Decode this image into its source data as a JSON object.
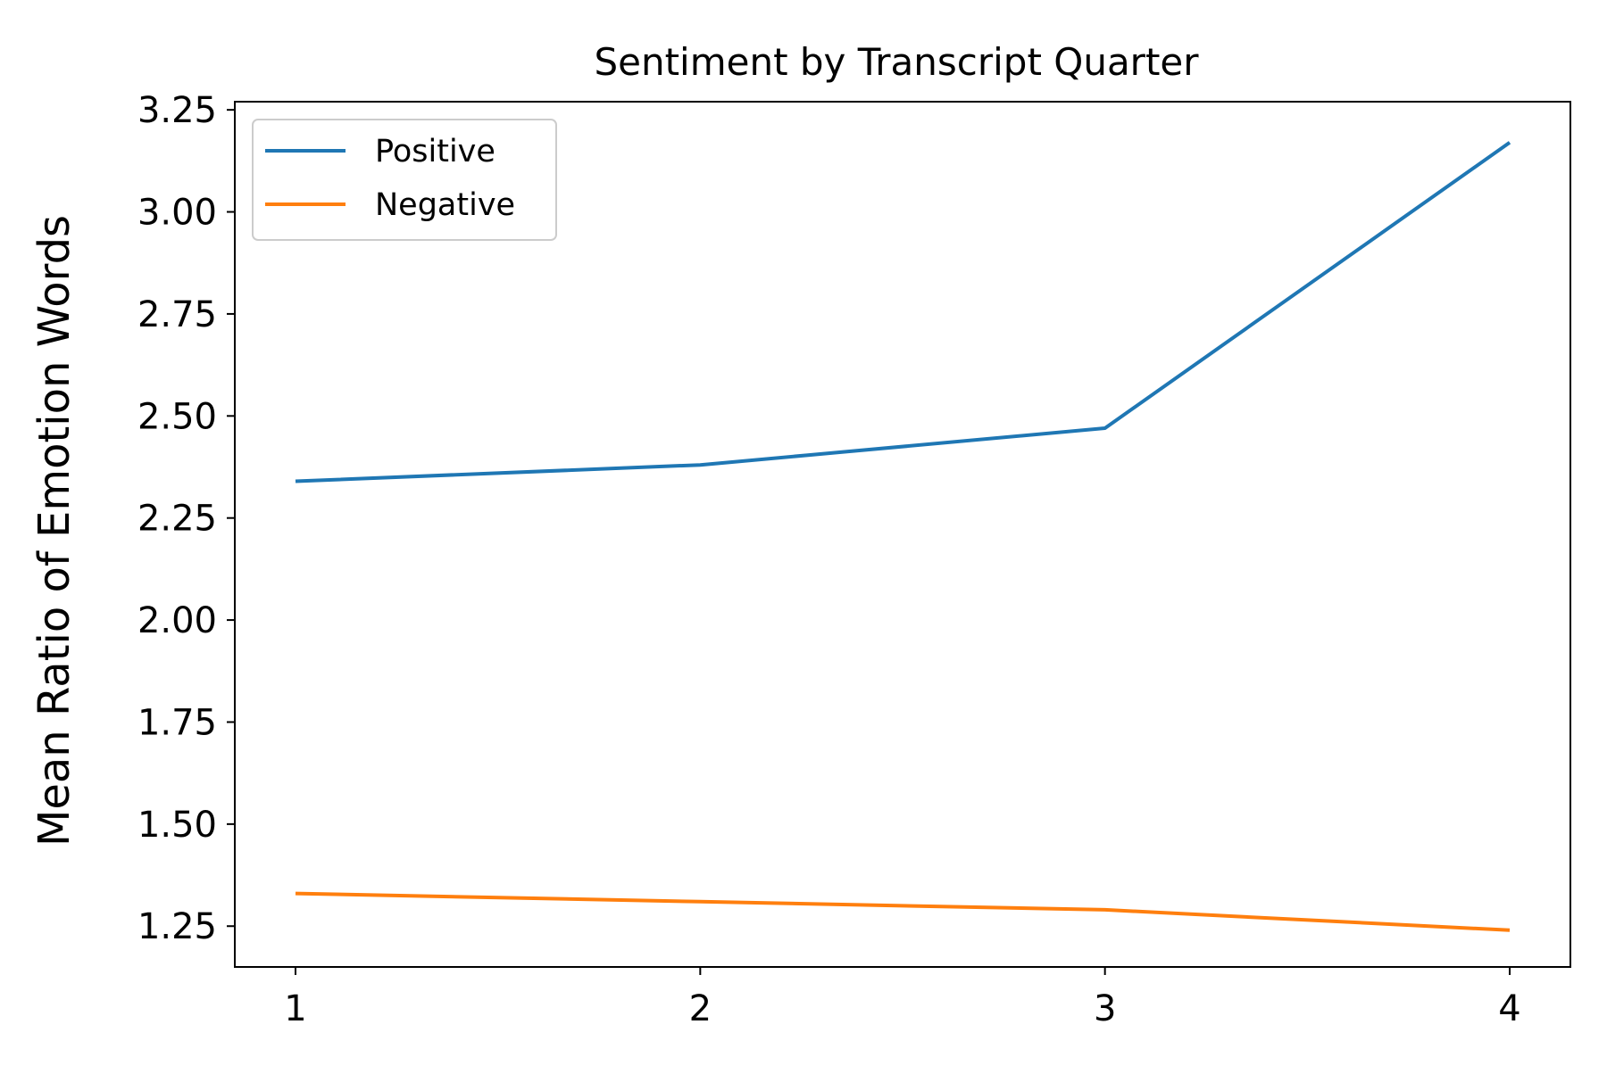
{
  "chart_data": {
    "type": "line",
    "title": "Sentiment by Transcript Quarter",
    "xlabel": "",
    "ylabel": "Mean Ratio of Emotion Words",
    "x": [
      1,
      2,
      3,
      4
    ],
    "xticks": [
      "1",
      "2",
      "3",
      "4"
    ],
    "xlim": [
      0.85,
      4.15
    ],
    "ylim": [
      1.15,
      3.27
    ],
    "yticks": [
      1.25,
      1.5,
      1.75,
      2.0,
      2.25,
      2.5,
      2.75,
      3.0,
      3.25
    ],
    "ytick_labels": [
      "1.25",
      "1.50",
      "1.75",
      "2.00",
      "2.25",
      "2.50",
      "2.75",
      "3.00",
      "3.25"
    ],
    "grid": false,
    "legend_position": "top-left",
    "series": [
      {
        "name": "Positive",
        "color": "#1f77b4",
        "values": [
          2.34,
          2.38,
          2.47,
          3.17
        ]
      },
      {
        "name": "Negative",
        "color": "#ff7f0e",
        "values": [
          1.33,
          1.31,
          1.29,
          1.24
        ]
      }
    ]
  }
}
